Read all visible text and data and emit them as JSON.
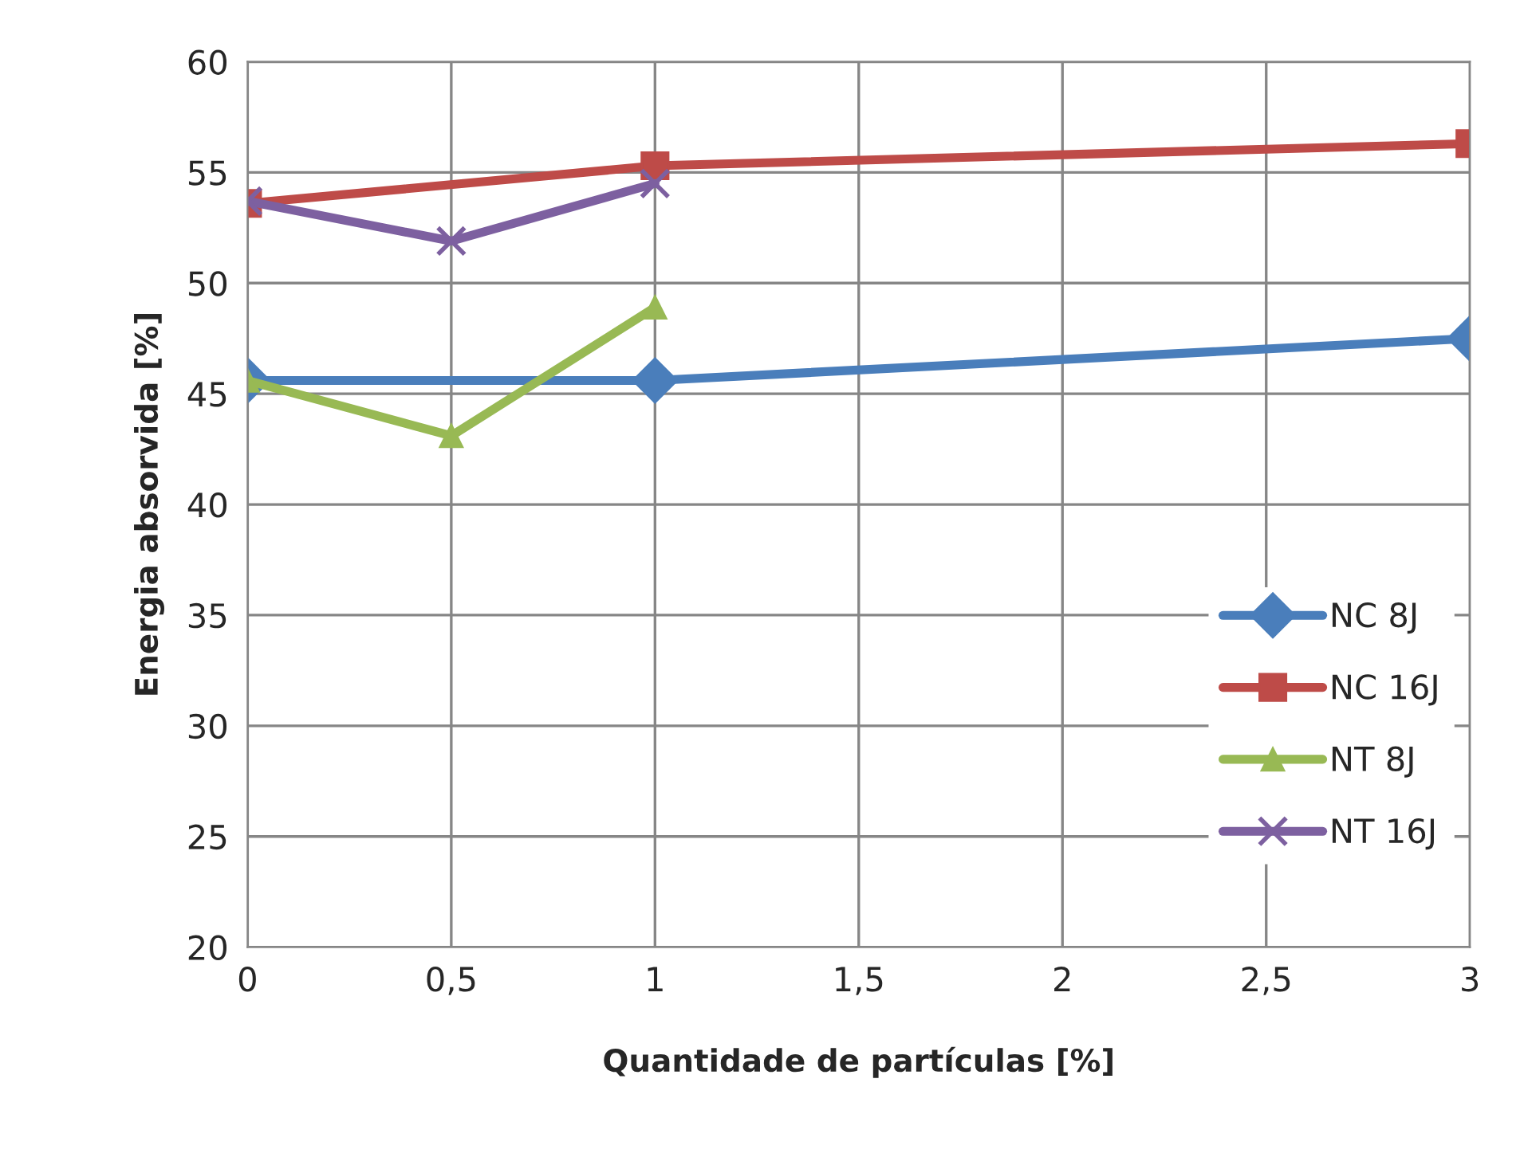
{
  "chart_data": {
    "type": "line",
    "xlabel": "Quantidade de partículas [%]",
    "ylabel": "Energia absorvida [%]",
    "xlim": [
      0,
      3
    ],
    "xticks": [
      0,
      {
        "value": 0.5,
        "label": "0,5"
      },
      1,
      {
        "value": 1.5,
        "label": "1,5"
      },
      2,
      {
        "value": 2.5,
        "label": "2,5"
      },
      3
    ],
    "ylim": [
      20,
      60
    ],
    "yticks": [
      20,
      25,
      30,
      35,
      40,
      45,
      50,
      55,
      60
    ],
    "grid": true,
    "legend": "right",
    "series": [
      {
        "name": "NC 8J",
        "color": "#4a7ebb",
        "marker": "diamond",
        "x": [
          0,
          1,
          3
        ],
        "values": [
          45.6,
          45.6,
          47.5
        ]
      },
      {
        "name": "NC 16J",
        "color": "#be4b48",
        "marker": "square",
        "x": [
          0,
          1,
          3
        ],
        "values": [
          53.6,
          55.3,
          56.3
        ]
      },
      {
        "name": "NT 8J",
        "color": "#98b954",
        "marker": "triangle",
        "x": [
          0,
          0.5,
          1
        ],
        "values": [
          45.6,
          43.1,
          48.9
        ]
      },
      {
        "name": "NT 16J",
        "color": "#7d60a0",
        "marker": "cross",
        "x": [
          0,
          0.5,
          1
        ],
        "values": [
          53.7,
          51.9,
          54.5
        ]
      }
    ]
  }
}
